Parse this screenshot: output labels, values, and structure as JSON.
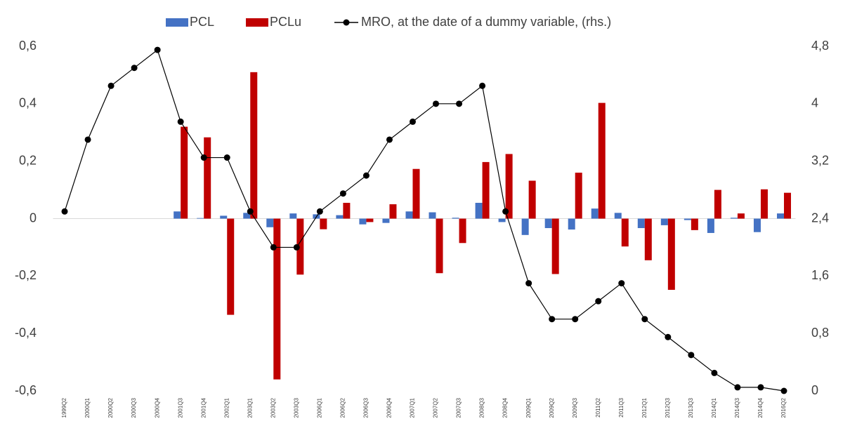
{
  "chart_data": {
    "type": "bar",
    "categories": [
      "1999Q2",
      "2000Q1",
      "2000Q2",
      "2000Q3",
      "2000Q4",
      "2001Q3",
      "2001Q4",
      "2002Q1",
      "2003Q1",
      "2003Q2",
      "2003Q3",
      "2006Q1",
      "2006Q2",
      "2006Q3",
      "2006Q4",
      "2007Q1",
      "2007Q2",
      "2007Q3",
      "2008Q3",
      "2008Q4",
      "2009Q1",
      "2009Q2",
      "2009Q3",
      "2011Q2",
      "2011Q3",
      "2012Q1",
      "2012Q3",
      "2013Q3",
      "2014Q1",
      "2014Q3",
      "2014Q4",
      "2016Q2"
    ],
    "series": [
      {
        "name": "PCL",
        "type": "bar",
        "color": "#4472c4",
        "values": [
          null,
          null,
          null,
          null,
          null,
          0.025,
          0.002,
          0.01,
          0.02,
          -0.03,
          0.018,
          0.015,
          0.012,
          -0.02,
          -0.015,
          0.025,
          0.022,
          0.003,
          0.055,
          -0.012,
          -0.057,
          -0.033,
          -0.038,
          0.035,
          0.02,
          -0.033,
          -0.023,
          -0.005,
          -0.05,
          0.003,
          -0.047,
          0.018
        ]
      },
      {
        "name": "PCLu",
        "type": "bar",
        "color": "#c00000",
        "values": [
          null,
          null,
          null,
          null,
          null,
          0.32,
          0.283,
          -0.335,
          0.51,
          -0.56,
          -0.195,
          -0.037,
          0.055,
          -0.012,
          0.05,
          0.173,
          -0.19,
          -0.085,
          0.197,
          0.225,
          0.132,
          -0.193,
          0.16,
          0.403,
          -0.097,
          -0.145,
          -0.248,
          -0.04,
          0.1,
          0.018,
          0.102,
          0.09
        ]
      },
      {
        "name": "MRO, at the date of a dummy variable, (rhs.)",
        "type": "line",
        "axis": "y2",
        "color": "#000000",
        "values": [
          2.5,
          3.5,
          4.25,
          4.5,
          4.75,
          3.75,
          3.25,
          3.25,
          2.5,
          2.0,
          2.0,
          2.5,
          2.75,
          3.0,
          3.5,
          3.75,
          4.0,
          4.0,
          4.25,
          2.5,
          1.5,
          1.0,
          1.0,
          1.25,
          1.5,
          1.0,
          0.75,
          0.5,
          0.25,
          0.05,
          0.05,
          0
        ]
      }
    ],
    "ylim": [
      -0.6,
      0.6
    ],
    "yticks": [
      {
        "value": -0.6,
        "label": "-0,6"
      },
      {
        "value": -0.4,
        "label": "-0,4"
      },
      {
        "value": -0.2,
        "label": "-0,2"
      },
      0,
      {
        "value": 0.2,
        "label": "0,2"
      },
      {
        "value": 0.4,
        "label": "0,4"
      },
      {
        "value": 0.6,
        "label": "0,6"
      }
    ],
    "y2lim": [
      0,
      4.8
    ],
    "y2ticks": [
      0,
      {
        "value": 0.8,
        "label": "0,8"
      },
      {
        "value": 1.6,
        "label": "1,6"
      },
      {
        "value": 2.4,
        "label": "2,4"
      },
      {
        "value": 3.2,
        "label": "3,2"
      },
      4,
      {
        "value": 4.8,
        "label": "4,8"
      }
    ],
    "grid": false,
    "legend": "top"
  }
}
